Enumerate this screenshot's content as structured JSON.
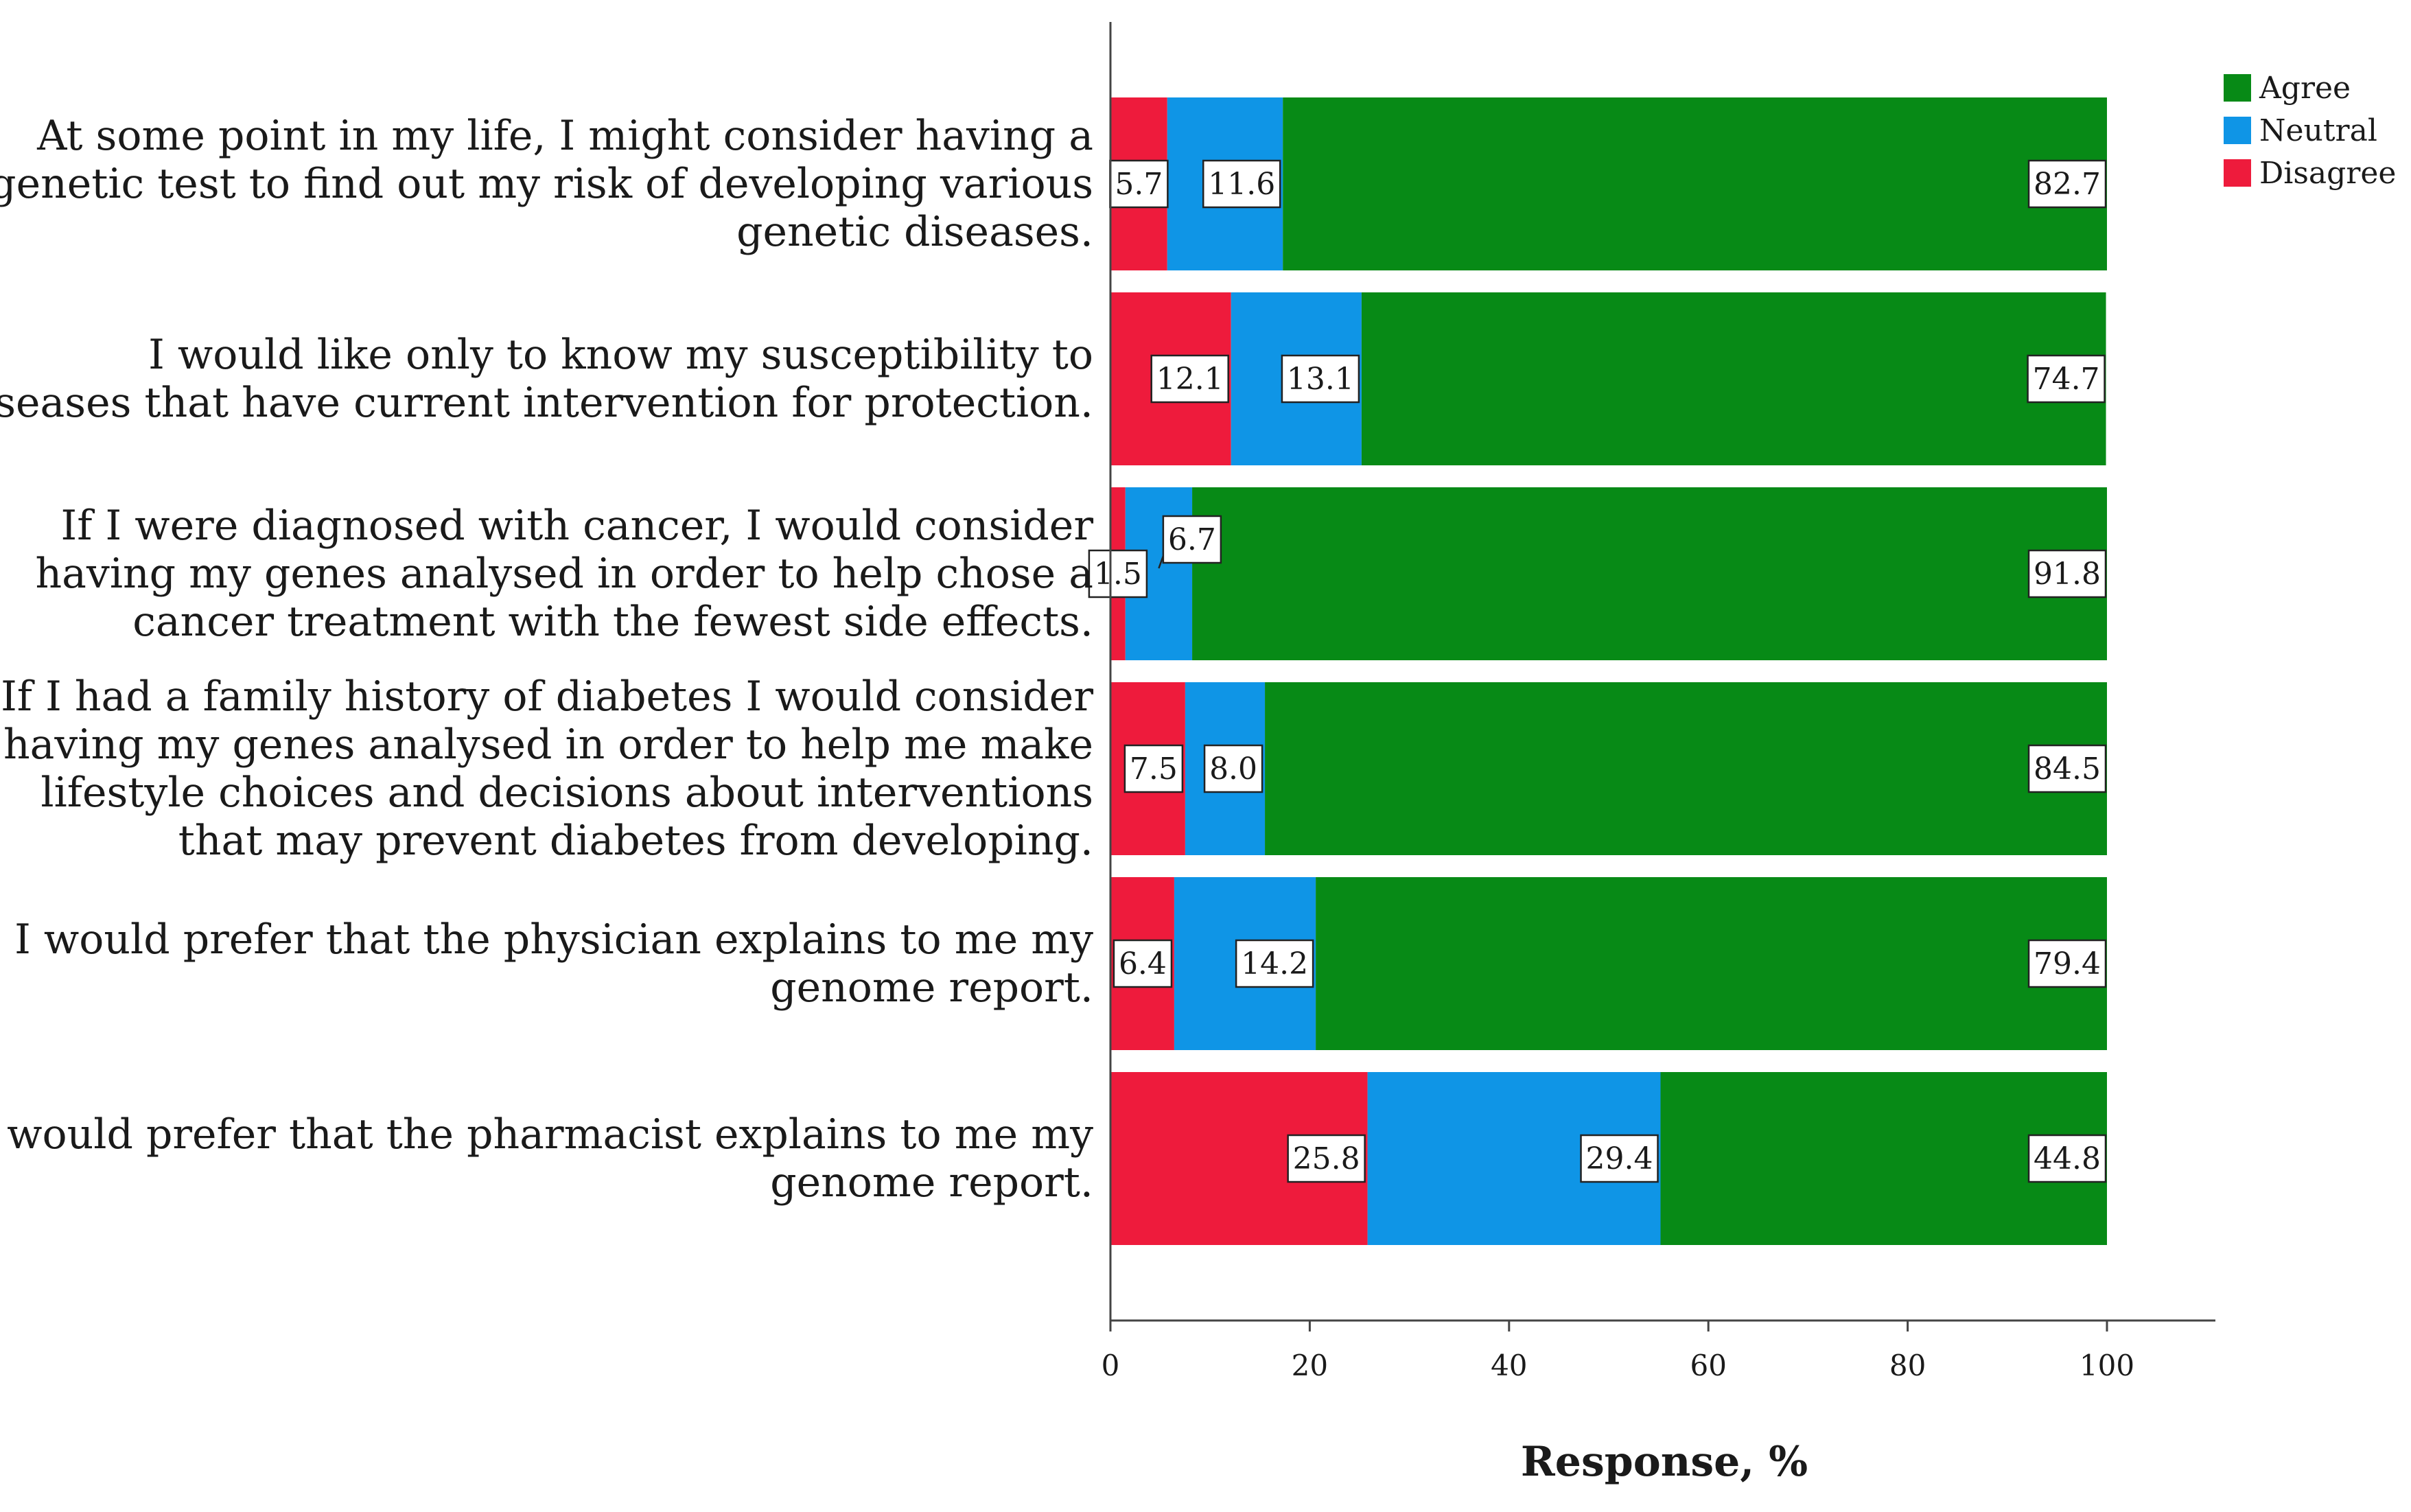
{
  "chart_data": {
    "type": "bar",
    "orientation": "horizontal",
    "stacked": true,
    "categories": [
      [
        "At some point in my life, I might consider having a",
        "genetic test to find out my risk of developing various",
        "genetic diseases."
      ],
      [
        "I would like only to know my susceptibility to",
        "diseases that have current intervention for protection."
      ],
      [
        "If I were diagnosed with cancer, I would consider",
        "having my genes analysed in order to help chose a",
        "cancer treatment with the fewest side effects."
      ],
      [
        "If I had a family history of diabetes I would consider",
        "having my genes analysed in order to help me make",
        "lifestyle choices and decisions about interventions",
        "that may prevent diabetes from developing."
      ],
      [
        "I would prefer that the physician explains to me my",
        "genome report."
      ],
      [
        "I would prefer that the pharmacist explains to me my",
        "genome report."
      ]
    ],
    "series": [
      {
        "name": "Disagree",
        "color": "#ee1b3c",
        "values": [
          5.7,
          12.1,
          1.5,
          7.5,
          6.4,
          25.8
        ],
        "labels": [
          "5.7",
          "12.1",
          "1.5",
          "7.5",
          "6.4",
          "25.8"
        ]
      },
      {
        "name": "Neutral",
        "color": "#0f95e6",
        "values": [
          11.6,
          13.1,
          6.7,
          8.0,
          14.2,
          29.4
        ],
        "labels": [
          "11.6",
          "13.1",
          "6.7",
          "8.0",
          "14.2",
          "29.4"
        ]
      },
      {
        "name": "Agree",
        "color": "#078a16",
        "values": [
          82.7,
          74.7,
          91.8,
          84.5,
          79.4,
          44.8
        ],
        "labels": [
          "82.7",
          "74.7",
          "91.8",
          "84.5",
          "79.4",
          "44.8"
        ]
      }
    ],
    "legend_order": [
      "Agree",
      "Neutral",
      "Disagree"
    ],
    "legend_position": "top-right",
    "xlabel": "Response, %",
    "xlim": [
      0,
      100
    ],
    "xticks": [
      0,
      20,
      40,
      60,
      80,
      100
    ],
    "grid": false
  }
}
